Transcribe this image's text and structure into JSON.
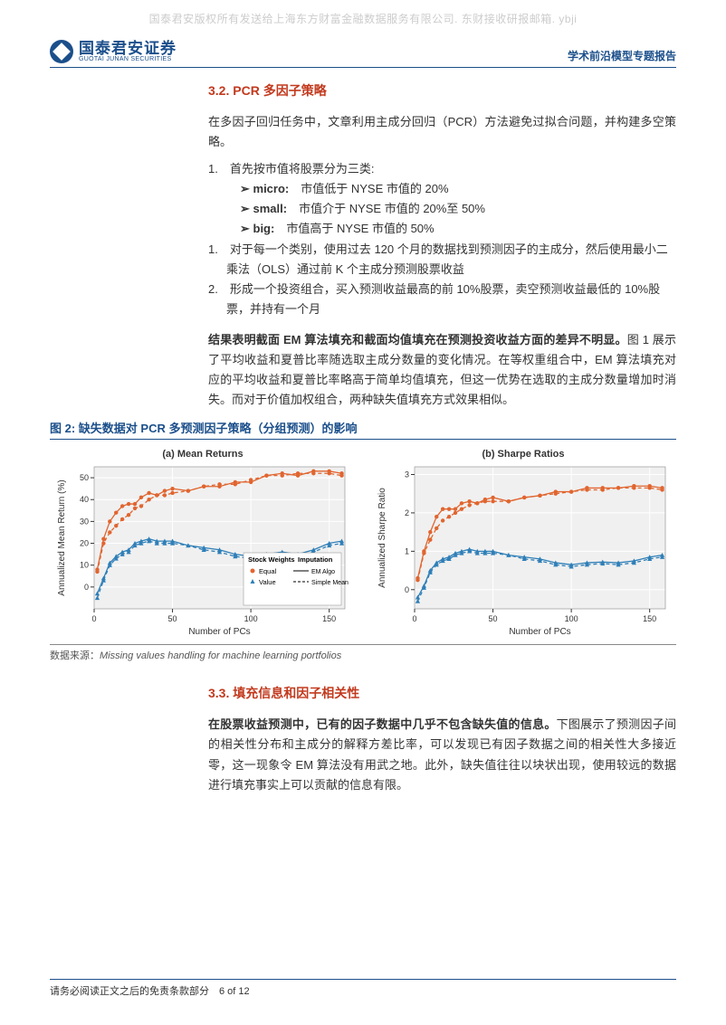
{
  "watermark": "国泰君安版权所有发送给上海东方财富金融数据服务有限公司. 东财接收研报邮箱. ybji",
  "header": {
    "logo_cn": "国泰君安证券",
    "logo_en": "GUOTAI JUNAN SECURITIES",
    "right": "学术前沿模型专题报告"
  },
  "section32": {
    "title": "3.2.  PCR 多因子策略",
    "para1": "在多因子回归任务中，文章利用主成分回归（PCR）方法避免过拟合问题，并构建多空策略。",
    "l1": "1.　首先按市值将股票分为三类:",
    "s1a": "➢ micro:　市值低于 NYSE 市值的 20%",
    "s1b": "➢ small:　市值介于 NYSE 市值的 20%至 50%",
    "s1c": "➢ big:　市值高于 NYSE 市值的 50%",
    "l2": "1.　对于每一个类别，使用过去 120 个月的数据找到预测因子的主成分，然后使用最小二乘法（OLS）通过前 K 个主成分预测股票收益",
    "l3": "2.　形成一个投资组合，买入预测收益最高的前 10%股票，卖空预测收益最低的 10%股票，并持有一个月",
    "para2a": "结果表明截面 EM 算法填充和截面均值填充在预测投资收益方面的差异不明显。",
    "para2b": "图 1 展示了平均收益和夏普比率随选取主成分数量的变化情况。在等权重组合中，EM 算法填充对应的平均收益和夏普比率略高于简单均值填充，但这一优势在选取的主成分数量增加时消失。而对于价值加权组合，两种缺失值填充方式效果相似。"
  },
  "fig2": {
    "title": "图 2:  缺失数据对 PCR 多预测因子策略（分组预测）的影响",
    "source_label": "数据来源：",
    "source_text": "Missing values handling for machine learning portfolios"
  },
  "chart_a": {
    "title": "(a) Mean Returns",
    "xlabel": "Number of PCs",
    "ylabel": "Annualized Mean Return (%)",
    "xlim": [
      0,
      160
    ],
    "xticks": [
      0,
      50,
      100,
      150
    ],
    "ylim": [
      -10,
      55
    ],
    "yticks": [
      0,
      10,
      20,
      30,
      40,
      50
    ],
    "grid_color": "#e8e8e8",
    "bg": "#f0f0f0",
    "x": [
      2,
      6,
      10,
      14,
      18,
      22,
      26,
      30,
      35,
      40,
      45,
      50,
      60,
      70,
      80,
      90,
      100,
      110,
      120,
      130,
      140,
      150,
      158
    ],
    "series": {
      "equal_em": {
        "y": [
          8,
          22,
          30,
          34,
          37,
          38,
          38,
          41,
          43,
          42,
          44,
          45,
          44,
          46,
          46,
          48,
          48,
          51,
          52,
          51,
          53,
          53,
          52
        ],
        "color": "#e1652f",
        "shape": "circle",
        "dash": "none"
      },
      "equal_mean": {
        "y": [
          7,
          20,
          25,
          28,
          31,
          33,
          36,
          37,
          40,
          42,
          42,
          43,
          44,
          46,
          47,
          47,
          49,
          51,
          51,
          52,
          52,
          52,
          51
        ],
        "color": "#e1652f",
        "shape": "circle",
        "dash": "dash"
      },
      "value_em": {
        "y": [
          -3,
          4,
          11,
          14,
          16,
          17,
          20,
          21,
          22,
          21,
          21,
          21,
          19,
          18,
          17,
          15,
          14,
          15,
          16,
          15,
          17,
          20,
          21
        ],
        "color": "#2f7fb8",
        "shape": "triangle",
        "dash": "none"
      },
      "value_mean": {
        "y": [
          -5,
          3,
          10,
          13,
          15,
          16,
          19,
          20,
          21,
          20,
          20,
          20,
          19,
          17,
          16,
          14,
          13,
          14,
          15,
          14,
          16,
          19,
          20
        ],
        "color": "#2f7fb8",
        "shape": "triangle",
        "dash": "dash"
      }
    },
    "legend": {
      "stock_title": "Stock Weights",
      "imp_title": "Imputation",
      "equal": "Equal",
      "value": "Value",
      "em": "EM Algo",
      "mean": "Simple Mean"
    }
  },
  "chart_b": {
    "title": "(b) Sharpe Ratios",
    "xlabel": "Number of PCs",
    "ylabel": "Annualized Sharpe Ratio",
    "xlim": [
      0,
      160
    ],
    "xticks": [
      0,
      50,
      100,
      150
    ],
    "ylim": [
      -0.5,
      3.2
    ],
    "yticks": [
      0,
      1,
      2,
      3
    ],
    "grid_color": "#e8e8e8",
    "bg": "#f0f0f0",
    "x": [
      2,
      6,
      10,
      14,
      18,
      22,
      26,
      30,
      35,
      40,
      45,
      50,
      60,
      70,
      80,
      90,
      100,
      110,
      120,
      130,
      140,
      150,
      158
    ],
    "series": {
      "equal_em": {
        "y": [
          0.3,
          1.0,
          1.5,
          1.9,
          2.1,
          2.1,
          2.1,
          2.25,
          2.3,
          2.25,
          2.35,
          2.4,
          2.3,
          2.4,
          2.45,
          2.55,
          2.55,
          2.65,
          2.65,
          2.65,
          2.7,
          2.7,
          2.65
        ],
        "color": "#e1652f",
        "shape": "circle",
        "dash": "none"
      },
      "equal_mean": {
        "y": [
          0.25,
          0.95,
          1.3,
          1.6,
          1.8,
          1.9,
          2.0,
          2.1,
          2.2,
          2.25,
          2.3,
          2.3,
          2.3,
          2.4,
          2.45,
          2.5,
          2.55,
          2.6,
          2.6,
          2.65,
          2.65,
          2.65,
          2.6
        ],
        "color": "#e1652f",
        "shape": "circle",
        "dash": "dash"
      },
      "value_em": {
        "y": [
          -0.2,
          0.1,
          0.5,
          0.7,
          0.8,
          0.85,
          0.95,
          1.0,
          1.05,
          1.0,
          1.0,
          1.0,
          0.9,
          0.85,
          0.8,
          0.7,
          0.65,
          0.7,
          0.72,
          0.7,
          0.75,
          0.85,
          0.9
        ],
        "color": "#2f7fb8",
        "shape": "triangle",
        "dash": "none"
      },
      "value_mean": {
        "y": [
          -0.3,
          0.05,
          0.45,
          0.65,
          0.75,
          0.8,
          0.9,
          0.95,
          1.0,
          0.95,
          0.95,
          0.95,
          0.9,
          0.8,
          0.75,
          0.65,
          0.6,
          0.65,
          0.68,
          0.65,
          0.7,
          0.8,
          0.85
        ],
        "color": "#2f7fb8",
        "shape": "triangle",
        "dash": "dash"
      }
    }
  },
  "section33": {
    "title": "3.3.  填充信息和因子相关性",
    "para_a": "在股票收益预测中，已有的因子数据中几乎不包含缺失值的信息。",
    "para_b": "下图展示了预测因子间的相关性分布和主成分的解释方差比率，可以发现已有因子数据之间的相关性大多接近零，这一现象令 EM 算法没有用武之地。此外，缺失值往往以块状出现，使用较远的数据进行填充事实上可以贡献的信息有限。"
  },
  "footer": "请务必阅读正文之后的免责条款部分　6 of 12"
}
